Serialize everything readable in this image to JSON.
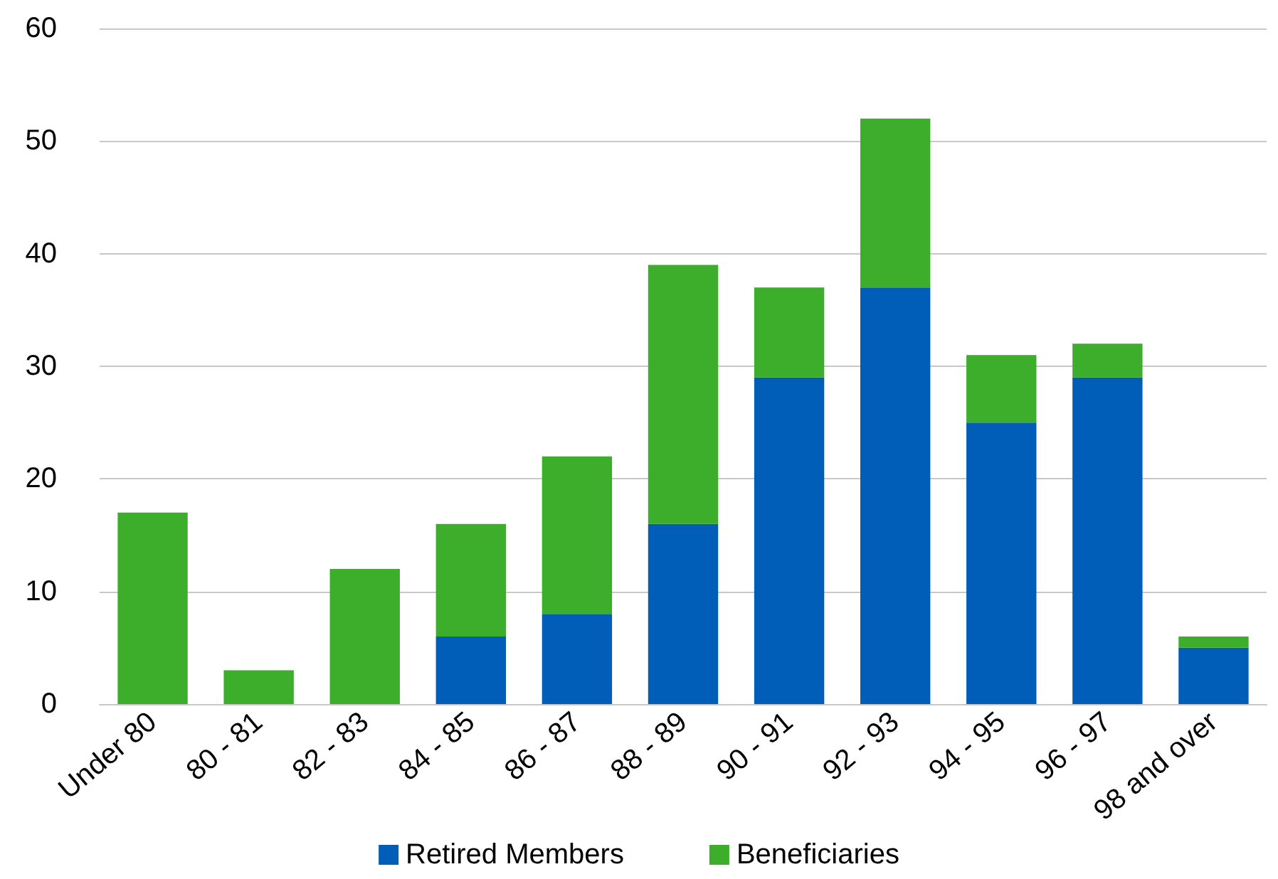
{
  "chart_data": {
    "type": "bar",
    "stacked": true,
    "categories": [
      "Under 80",
      "80 - 81",
      "82 - 83",
      "84 - 85",
      "86 - 87",
      "88 - 89",
      "90 - 91",
      "92 - 93",
      "94 - 95",
      "96 - 97",
      "98 and over"
    ],
    "series": [
      {
        "name": "Retired Members",
        "color": "#005eb8",
        "values": [
          0,
          0,
          0,
          6,
          8,
          16,
          29,
          37,
          25,
          29,
          5
        ]
      },
      {
        "name": "Beneficiaries",
        "color": "#3dae2b",
        "values": [
          17,
          3,
          12,
          10,
          14,
          23,
          8,
          15,
          6,
          3,
          1
        ]
      }
    ],
    "ylim": [
      0,
      60
    ],
    "yticks": [
      0,
      10,
      20,
      30,
      40,
      50,
      60
    ],
    "grid": "y",
    "legend": "bottom"
  }
}
